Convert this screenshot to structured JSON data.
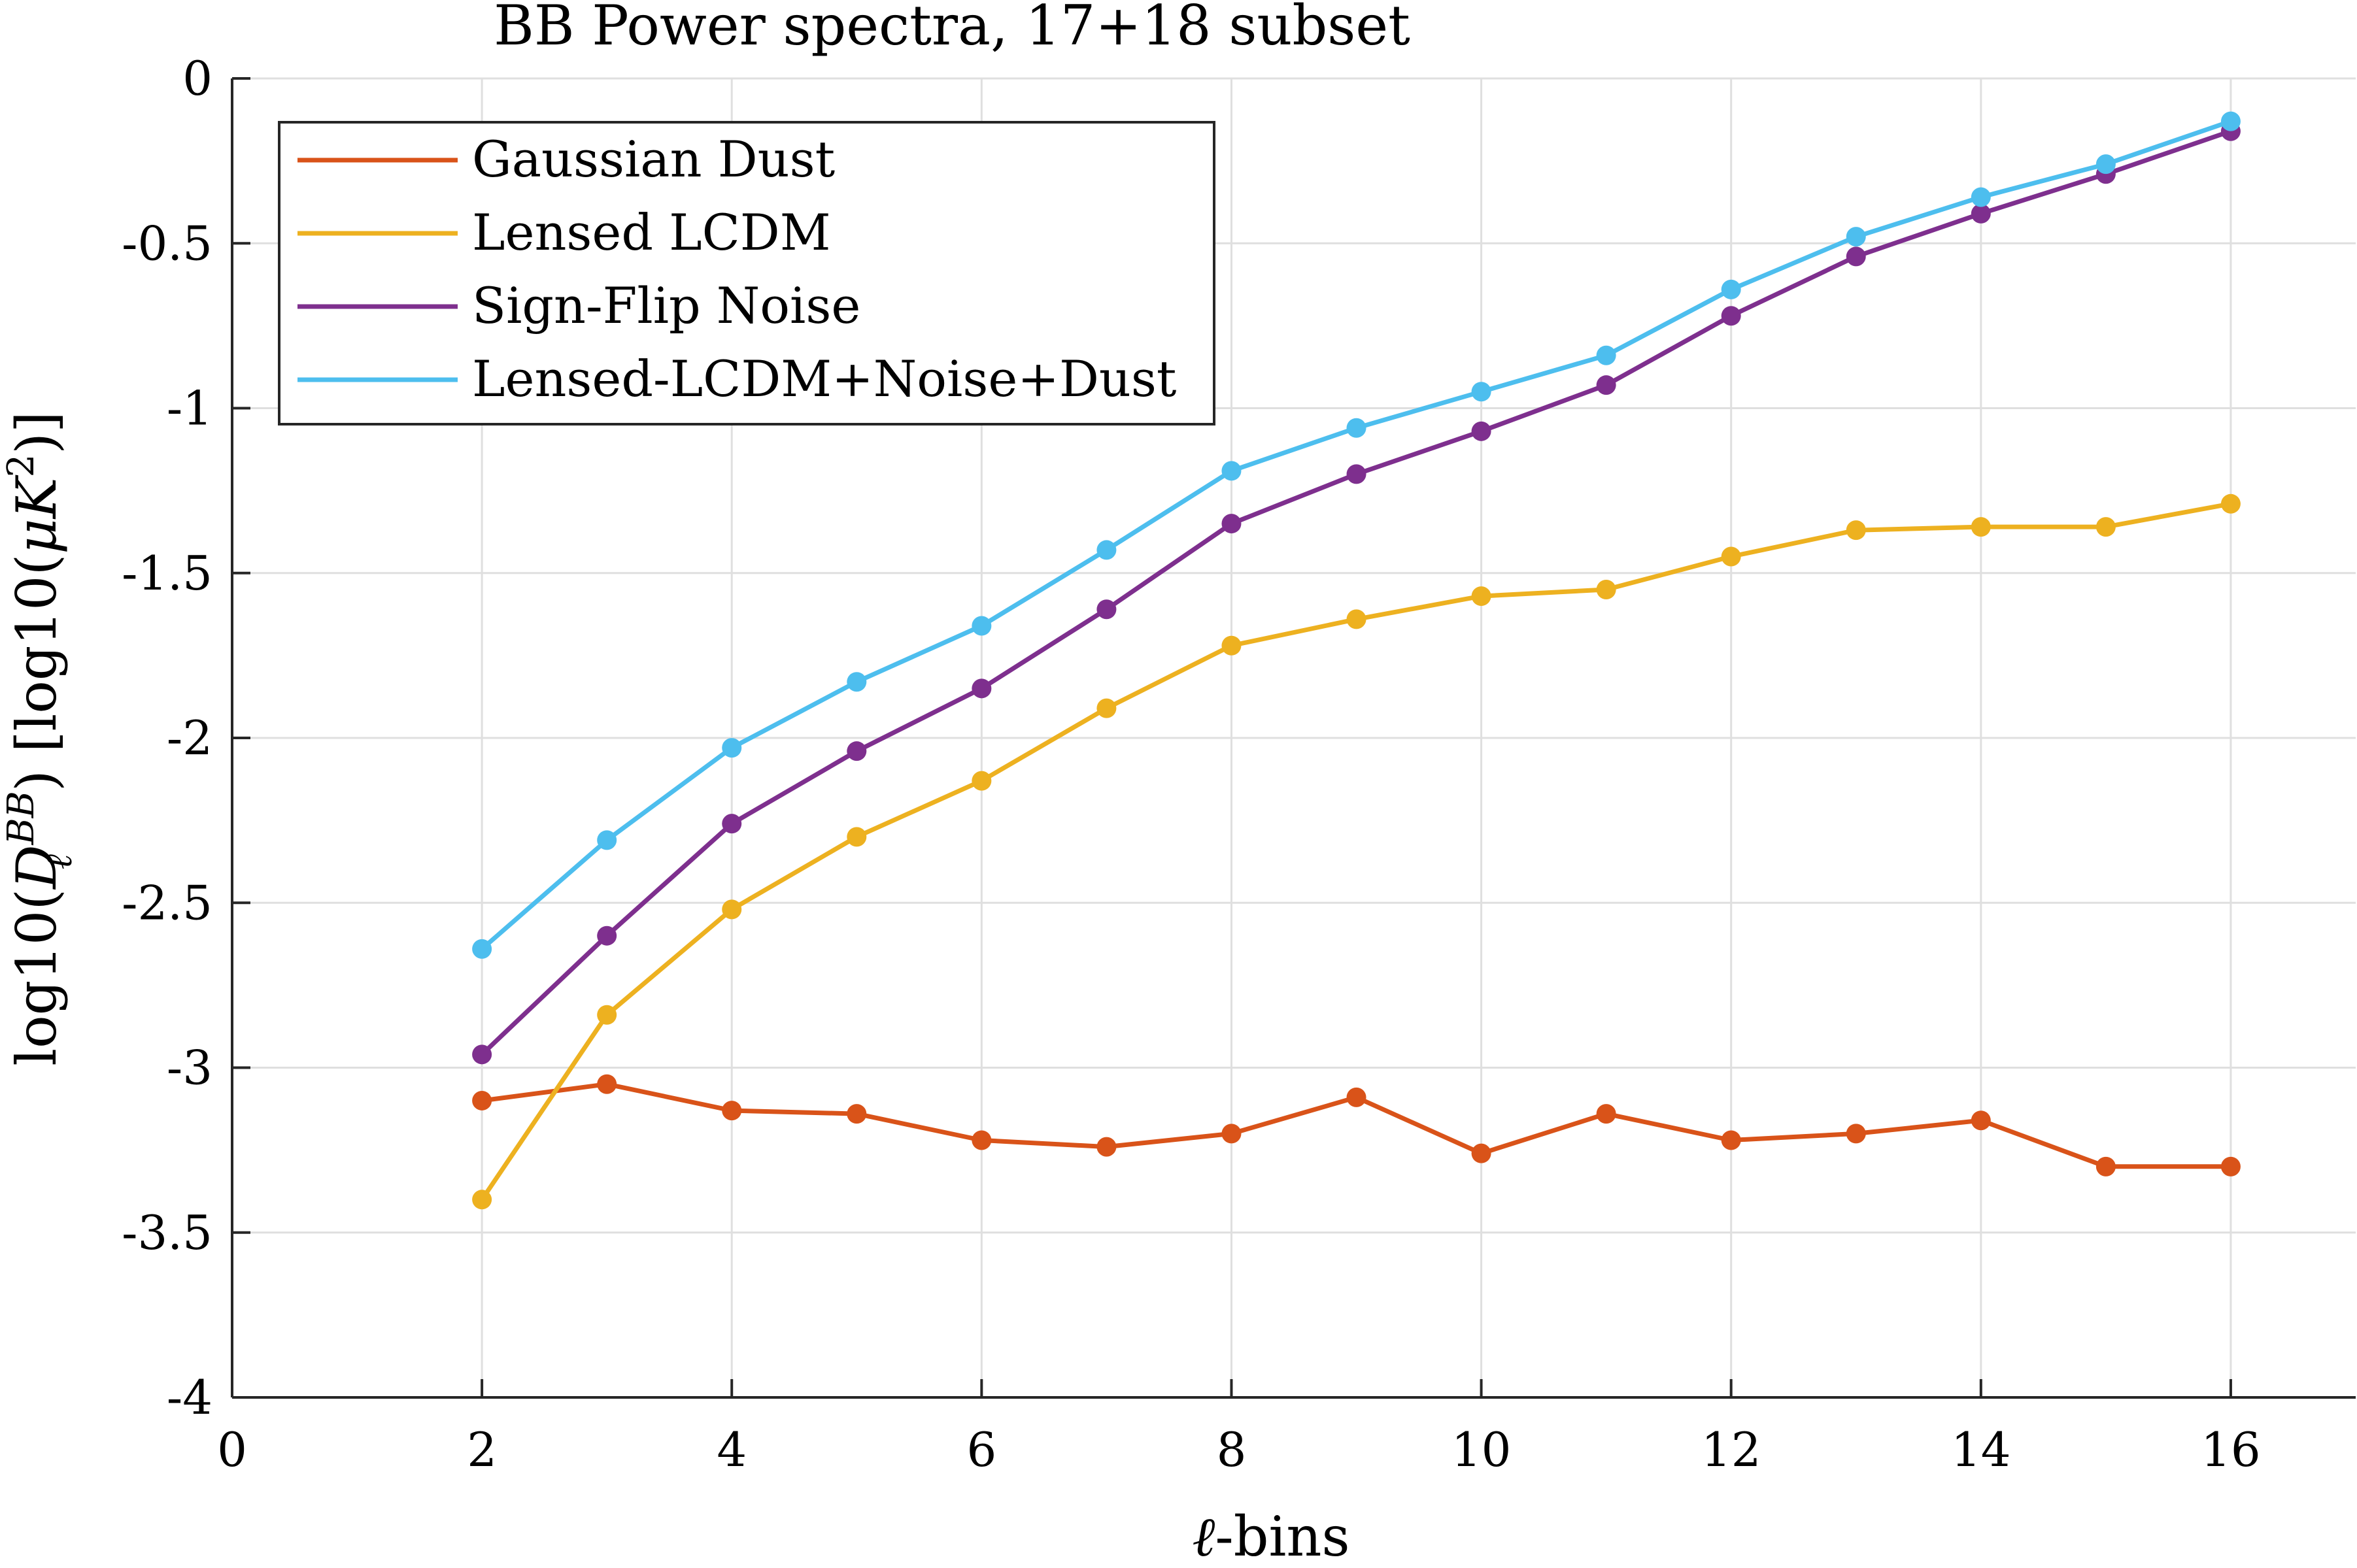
{
  "chart_data": {
    "type": "line",
    "title": "BB Power spectra, 17+18 subset",
    "xlabel": "ℓ-bins",
    "ylabel": "log10(D_ℓ^{BB}) [log10(μK²)]",
    "ylabel_parts": {
      "prefix": "log10(",
      "symbol": "D",
      "sup": "BB",
      "sub": "ℓ",
      "mid": ") [log10(",
      "mu": "μ",
      "k": "K",
      "ksup": "2",
      "suffix": ")]"
    },
    "xlim": [
      0,
      17
    ],
    "ylim": [
      -4,
      0
    ],
    "xticks": [
      0,
      2,
      4,
      6,
      8,
      10,
      12,
      14,
      16
    ],
    "xtick_labels": [
      "0",
      "2",
      "4",
      "6",
      "8",
      "10",
      "12",
      "14",
      "16"
    ],
    "yticks": [
      0,
      -0.5,
      -1,
      -1.5,
      -2,
      -2.5,
      -3,
      -3.5,
      -4
    ],
    "ytick_labels": [
      "0",
      "-0.5",
      "-1",
      "-1.5",
      "-2",
      "-2.5",
      "-3",
      "-3.5",
      "-4"
    ],
    "grid": true,
    "legend_position": "top-left",
    "x": [
      2,
      3,
      4,
      5,
      6,
      7,
      8,
      9,
      10,
      11,
      12,
      13,
      14,
      15,
      16
    ],
    "series": [
      {
        "name": "Gaussian Dust",
        "color": "#d95319",
        "values": [
          -3.1,
          -3.05,
          -3.13,
          -3.14,
          -3.22,
          -3.24,
          -3.2,
          -3.09,
          -3.26,
          -3.14,
          -3.22,
          -3.2,
          -3.16,
          -3.3,
          -3.3
        ]
      },
      {
        "name": "Lensed LCDM",
        "color": "#edb120",
        "values": [
          -3.4,
          -2.84,
          -2.52,
          -2.3,
          -2.13,
          -1.91,
          -1.72,
          -1.64,
          -1.57,
          -1.55,
          -1.45,
          -1.37,
          -1.36,
          -1.36,
          -1.29
        ]
      },
      {
        "name": "Sign-Flip Noise",
        "color": "#7e2f8e",
        "values": [
          -2.96,
          -2.6,
          -2.26,
          -2.04,
          -1.85,
          -1.61,
          -1.35,
          -1.2,
          -1.07,
          -0.93,
          -0.72,
          -0.54,
          -0.41,
          -0.29,
          -0.16
        ]
      },
      {
        "name": "Lensed-LCDM+Noise+Dust",
        "color": "#4dbeee",
        "values": [
          -2.64,
          -2.31,
          -2.03,
          -1.83,
          -1.66,
          -1.43,
          -1.19,
          -1.06,
          -0.95,
          -0.84,
          -0.64,
          -0.48,
          -0.36,
          -0.26,
          -0.13
        ]
      }
    ]
  }
}
